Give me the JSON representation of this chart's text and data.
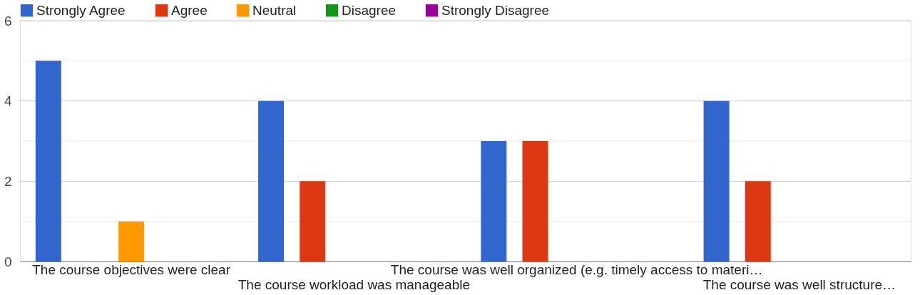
{
  "chart_data": {
    "type": "bar",
    "categories": [
      "The course objectives were clear",
      "The course workload was manageable",
      "The course was well organized (e.g. timely access to materi…",
      "The course was well structure…"
    ],
    "series": [
      {
        "name": "Strongly Agree",
        "color": "#3366cc",
        "values": [
          5,
          4,
          3,
          4
        ]
      },
      {
        "name": "Agree",
        "color": "#dc3912",
        "values": [
          0,
          2,
          3,
          2
        ]
      },
      {
        "name": "Neutral",
        "color": "#ff9900",
        "values": [
          1,
          0,
          0,
          0
        ]
      },
      {
        "name": "Disagree",
        "color": "#109618",
        "values": [
          0,
          0,
          0,
          0
        ]
      },
      {
        "name": "Strongly Disagree",
        "color": "#990099",
        "values": [
          0,
          0,
          0,
          0
        ]
      }
    ],
    "ylim": [
      0,
      6
    ],
    "yticks": [
      0,
      {
        "value": 1,
        "label": null
      },
      2,
      {
        "value": 3,
        "label": null
      },
      4,
      {
        "value": 5,
        "label": null
      },
      6
    ],
    "grid": true,
    "legend": "top left"
  }
}
